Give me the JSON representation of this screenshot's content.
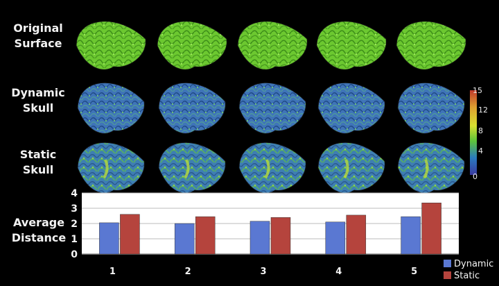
{
  "rows": [
    {
      "label": "Original\nSurface",
      "style": "original"
    },
    {
      "label": "Dynamic\nSkull",
      "style": "dynamic"
    },
    {
      "label": "Static\nSkull",
      "style": "static"
    }
  ],
  "colorbar": {
    "ticks": [
      "15",
      "12",
      "8",
      "4",
      "0"
    ],
    "values": [
      15,
      12,
      8,
      4,
      0
    ],
    "colors": [
      "#c0392b",
      "#e0a030",
      "#d7e030",
      "#5cc43a",
      "#2a7abf",
      "#3a3aa0"
    ]
  },
  "chart_data": {
    "type": "bar",
    "ylabel": "Average\nDistance",
    "categories": [
      "1",
      "2",
      "3",
      "4",
      "5"
    ],
    "ylim": [
      0,
      4
    ],
    "yticks": [
      "0",
      "1",
      "2",
      "3",
      "4"
    ],
    "grid": true,
    "legend_position": "bottom-right",
    "series": [
      {
        "name": "Dynamic",
        "color": "#5a78d2",
        "values": [
          2.05,
          2.0,
          2.15,
          2.1,
          2.45
        ]
      },
      {
        "name": "Static",
        "color": "#b5443d",
        "values": [
          2.6,
          2.45,
          2.4,
          2.55,
          3.35
        ]
      }
    ]
  }
}
